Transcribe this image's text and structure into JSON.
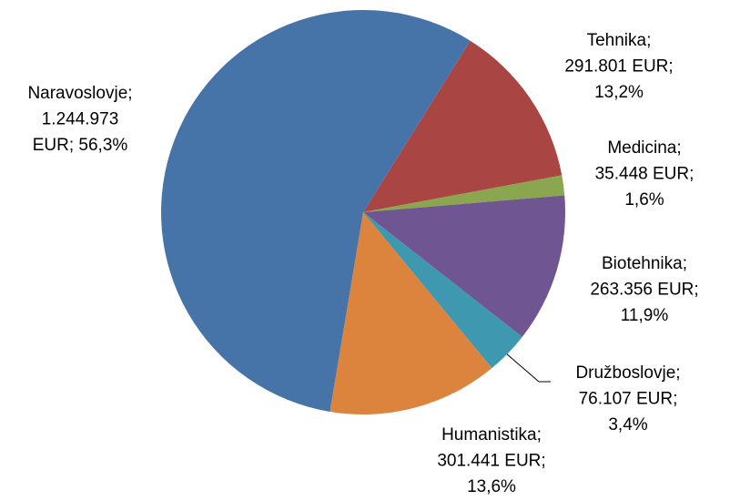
{
  "chart_data": {
    "type": "pie",
    "categories": [
      "Tehnika",
      "Medicina",
      "Biotehnika",
      "Družboslovje",
      "Humanistika",
      "Naravoslovje"
    ],
    "values": [
      291801,
      35448,
      263356,
      76107,
      301441,
      1244973
    ],
    "value_labels": [
      "291.801 EUR",
      "35.448 EUR",
      "263.356 EUR",
      "76.107 EUR",
      "301.441 EUR",
      "1.244.973 EUR"
    ],
    "percents": [
      13.2,
      1.6,
      11.9,
      3.4,
      13.6,
      56.3
    ],
    "percent_labels": [
      "13,2%",
      "1,6%",
      "11,9%",
      "3,4%",
      "13,6%",
      "56,3%"
    ],
    "label_separator": ";",
    "colors": [
      "#a94543",
      "#8aa64e",
      "#6f5592",
      "#3d98b0",
      "#dc843e",
      "#4673a8"
    ]
  }
}
